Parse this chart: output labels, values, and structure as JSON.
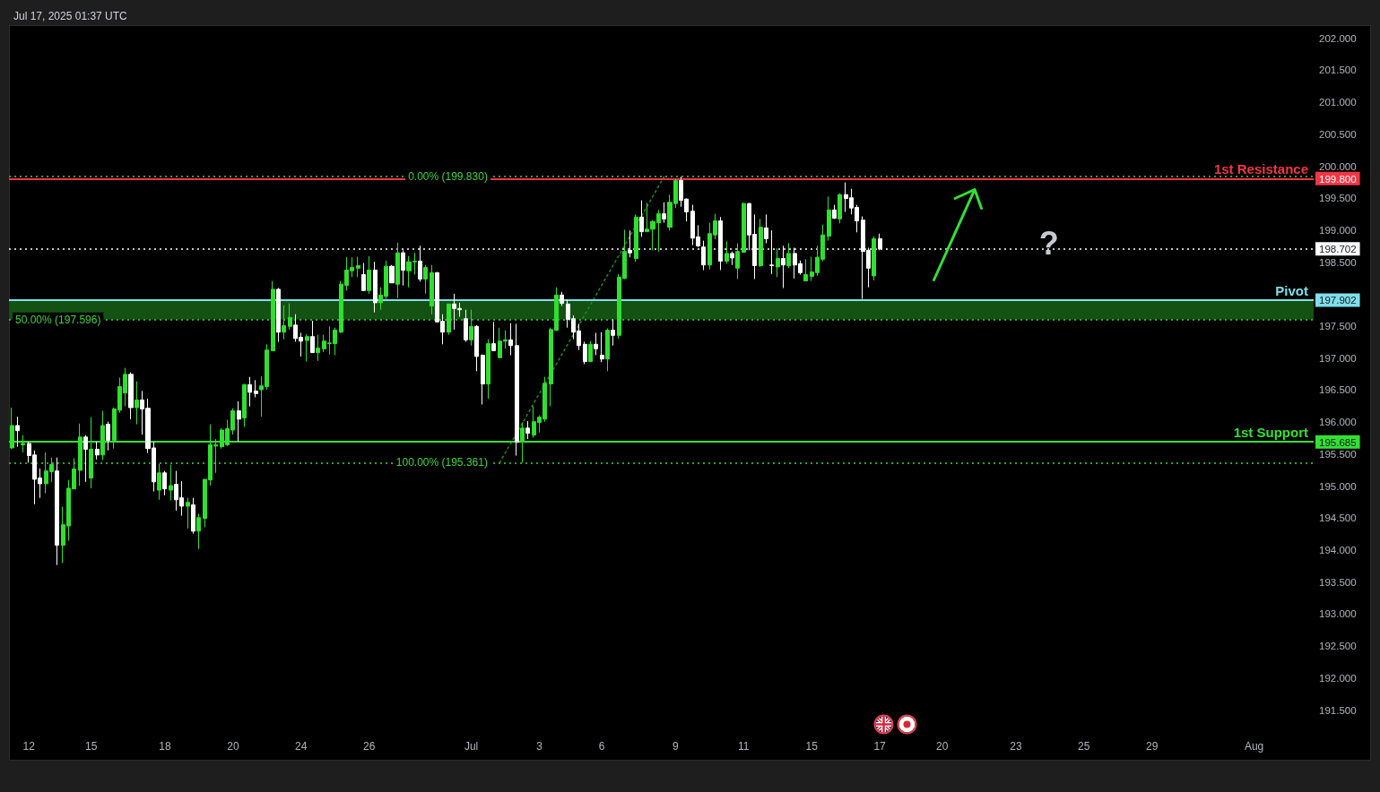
{
  "chart_data": {
    "type": "candlestick",
    "title": "Jul 17, 2025 01:37 UTC",
    "categories": [
      null,
      null,
      null,
      "12",
      null,
      null,
      null,
      null,
      null,
      null,
      null,
      null,
      null,
      null,
      "15",
      null,
      null,
      null,
      null,
      null,
      null,
      null,
      null,
      null,
      null,
      null,
      null,
      "18",
      null,
      null,
      null,
      null,
      null,
      null,
      null,
      null,
      null,
      null,
      null,
      "20",
      null,
      null,
      null,
      null,
      null,
      null,
      null,
      null,
      null,
      null,
      null,
      "24",
      null,
      null,
      null,
      null,
      null,
      null,
      null,
      null,
      null,
      null,
      null,
      "26",
      null,
      null,
      null,
      null,
      null,
      null,
      null,
      null,
      null,
      null,
      null,
      null,
      null,
      null,
      null,
      null,
      null,
      "Jul",
      null,
      null,
      null,
      null,
      null,
      null,
      null,
      null,
      null,
      null,
      null,
      "3",
      null,
      null,
      null,
      null,
      null,
      null,
      null,
      null,
      null,
      null,
      "6",
      null,
      null,
      null,
      null,
      null,
      null,
      null,
      null,
      null,
      null,
      null,
      null,
      "9",
      null,
      null,
      null,
      null,
      null,
      null,
      null,
      null,
      null,
      null,
      null,
      "11",
      null,
      null,
      null,
      null,
      null,
      null,
      null,
      null,
      null,
      null,
      null,
      "15",
      null,
      null,
      null,
      null,
      null,
      null,
      null,
      null,
      null,
      null,
      null,
      "17",
      null,
      null,
      null,
      null,
      null,
      null,
      null,
      null,
      null,
      null,
      "20",
      null,
      null,
      null,
      null,
      null,
      null,
      null,
      null,
      null,
      null,
      null,
      null,
      "23",
      null,
      null,
      null,
      null,
      null,
      null,
      null,
      null,
      null,
      null,
      null,
      "25",
      null,
      null,
      null,
      null,
      null,
      null,
      null,
      null,
      null,
      null,
      null,
      "29",
      null,
      null,
      null,
      null,
      null,
      null,
      null,
      null,
      null,
      null,
      null,
      null,
      null,
      null,
      null,
      null,
      null,
      "Aug",
      null,
      null,
      null,
      null,
      null,
      null,
      null,
      null,
      null,
      null
    ],
    "ohlc": [
      [
        195.59,
        196.22,
        195.57,
        195.94
      ],
      [
        195.94,
        196.08,
        195.61,
        195.86
      ],
      [
        195.64,
        195.79,
        195.52,
        195.66
      ],
      [
        195.66,
        195.69,
        195.36,
        195.47
      ],
      [
        195.48,
        195.55,
        194.71,
        195.1
      ],
      [
        195.12,
        195.27,
        194.81,
        195.03
      ],
      [
        195.03,
        195.52,
        194.88,
        195.23
      ],
      [
        195.22,
        195.44,
        195.06,
        195.33
      ],
      [
        195.23,
        195.44,
        193.76,
        194.07
      ],
      [
        194.07,
        194.67,
        193.79,
        194.39
      ],
      [
        194.37,
        195.09,
        194.14,
        194.96
      ],
      [
        194.95,
        195.43,
        194.95,
        195.26
      ],
      [
        195.24,
        195.97,
        195.0,
        195.76
      ],
      [
        195.76,
        195.79,
        195.06,
        195.57
      ],
      [
        195.12,
        196.07,
        194.96,
        195.57
      ],
      [
        195.57,
        195.69,
        195.41,
        195.48
      ],
      [
        195.48,
        196.17,
        195.4,
        195.94
      ],
      [
        195.96,
        196.0,
        195.55,
        195.71
      ],
      [
        195.71,
        196.22,
        195.58,
        196.2
      ],
      [
        196.18,
        196.69,
        196.14,
        196.55
      ],
      [
        196.45,
        196.84,
        196.24,
        196.74
      ],
      [
        196.74,
        196.77,
        196.04,
        196.22
      ],
      [
        196.22,
        196.63,
        195.96,
        196.34
      ],
      [
        196.34,
        196.48,
        195.8,
        196.2
      ],
      [
        196.21,
        196.36,
        195.51,
        195.58
      ],
      [
        195.59,
        195.69,
        194.91,
        195.06
      ],
      [
        194.93,
        195.34,
        194.78,
        195.2
      ],
      [
        195.2,
        195.23,
        194.85,
        194.95
      ],
      [
        194.93,
        195.33,
        194.77,
        195.0
      ],
      [
        195.02,
        195.23,
        194.61,
        194.78
      ],
      [
        194.81,
        195.07,
        194.53,
        194.68
      ],
      [
        194.68,
        194.81,
        194.33,
        194.74
      ],
      [
        194.7,
        194.81,
        194.25,
        194.29
      ],
      [
        194.29,
        194.56,
        194.01,
        194.5
      ],
      [
        194.49,
        195.1,
        194.35,
        195.1
      ],
      [
        195.09,
        195.96,
        195.0,
        195.64
      ],
      [
        195.62,
        195.73,
        195.2,
        195.64
      ],
      [
        195.61,
        195.9,
        195.58,
        195.87
      ],
      [
        195.64,
        196.03,
        195.62,
        195.89
      ],
      [
        195.87,
        196.21,
        195.8,
        196.17
      ],
      [
        196.17,
        196.32,
        195.69,
        196.04
      ],
      [
        196.06,
        196.59,
        195.92,
        196.58
      ],
      [
        196.58,
        196.7,
        196.24,
        196.46
      ],
      [
        196.48,
        196.65,
        196.38,
        196.44
      ],
      [
        196.5,
        196.71,
        196.08,
        196.56
      ],
      [
        196.55,
        197.21,
        196.5,
        197.12
      ],
      [
        197.11,
        198.2,
        197.11,
        198.07
      ],
      [
        198.07,
        198.09,
        197.25,
        197.4
      ],
      [
        197.4,
        197.82,
        197.29,
        197.5
      ],
      [
        197.49,
        197.85,
        197.44,
        197.63
      ],
      [
        197.51,
        197.68,
        197.25,
        197.3
      ],
      [
        197.32,
        197.39,
        197.02,
        197.26
      ],
      [
        197.27,
        197.37,
        196.94,
        197.33
      ],
      [
        197.33,
        197.58,
        197.08,
        197.08
      ],
      [
        197.08,
        197.36,
        196.95,
        197.15
      ],
      [
        197.14,
        197.36,
        197.09,
        197.26
      ],
      [
        197.22,
        197.49,
        197.05,
        197.23
      ],
      [
        197.22,
        197.47,
        197.04,
        197.43
      ],
      [
        197.4,
        198.2,
        197.39,
        198.15
      ],
      [
        198.13,
        198.57,
        198.05,
        198.37
      ],
      [
        198.36,
        198.57,
        198.26,
        198.41
      ],
      [
        198.4,
        198.58,
        198.26,
        198.44
      ],
      [
        198.3,
        198.48,
        198.05,
        198.05
      ],
      [
        198.05,
        198.59,
        198.0,
        198.37
      ],
      [
        198.37,
        198.5,
        197.71,
        197.86
      ],
      [
        197.86,
        198.1,
        197.75,
        197.98
      ],
      [
        197.96,
        198.52,
        197.92,
        198.43
      ],
      [
        198.43,
        198.45,
        198.17,
        198.17
      ],
      [
        198.15,
        198.8,
        197.93,
        198.64
      ],
      [
        198.64,
        198.68,
        198.13,
        198.37
      ],
      [
        198.36,
        198.59,
        198.1,
        198.5
      ],
      [
        198.5,
        198.64,
        198.3,
        198.51
      ],
      [
        198.51,
        198.75,
        198.19,
        198.23
      ],
      [
        198.23,
        198.45,
        198.0,
        198.41
      ],
      [
        197.81,
        198.45,
        197.68,
        198.33
      ],
      [
        198.33,
        198.34,
        197.56,
        197.56
      ],
      [
        197.57,
        197.68,
        197.21,
        197.4
      ],
      [
        197.4,
        197.84,
        197.36,
        197.84
      ],
      [
        197.84,
        198.0,
        197.44,
        197.77
      ],
      [
        197.77,
        197.86,
        197.64,
        197.75
      ],
      [
        197.61,
        197.75,
        197.25,
        197.28
      ],
      [
        197.28,
        197.75,
        197.19,
        197.49
      ],
      [
        197.49,
        197.51,
        196.79,
        197.02
      ],
      [
        197.04,
        197.05,
        196.27,
        196.59
      ],
      [
        196.59,
        197.29,
        196.36,
        197.22
      ],
      [
        197.22,
        197.56,
        197.11,
        197.11
      ],
      [
        197.0,
        197.47,
        197.0,
        197.26
      ],
      [
        197.26,
        197.43,
        197.14,
        197.28
      ],
      [
        197.28,
        197.54,
        197.04,
        197.19
      ],
      [
        197.19,
        197.53,
        195.47,
        195.68
      ],
      [
        195.68,
        195.99,
        195.36,
        195.9
      ],
      [
        195.9,
        196.01,
        195.73,
        195.82
      ],
      [
        195.79,
        196.24,
        195.75,
        196.0
      ],
      [
        195.99,
        196.1,
        195.83,
        196.07
      ],
      [
        196.04,
        196.7,
        196.0,
        196.6
      ],
      [
        196.59,
        197.47,
        196.24,
        197.44
      ],
      [
        197.43,
        198.1,
        197.42,
        197.98
      ],
      [
        197.98,
        198.03,
        197.81,
        197.85
      ],
      [
        197.84,
        197.91,
        197.47,
        197.6
      ],
      [
        197.61,
        197.66,
        197.29,
        197.4
      ],
      [
        197.42,
        197.53,
        197.12,
        197.19
      ],
      [
        197.21,
        197.25,
        196.9,
        196.94
      ],
      [
        196.94,
        197.26,
        196.94,
        197.21
      ],
      [
        197.21,
        197.39,
        197.04,
        197.14
      ],
      [
        197.04,
        197.4,
        196.93,
        196.98
      ],
      [
        196.98,
        197.46,
        196.79,
        197.43
      ],
      [
        197.43,
        197.6,
        197.19,
        197.35
      ],
      [
        197.35,
        198.31,
        197.3,
        198.26
      ],
      [
        198.24,
        199.0,
        198.23,
        198.66
      ],
      [
        198.68,
        198.99,
        198.57,
        198.64
      ],
      [
        198.55,
        199.24,
        198.5,
        199.2
      ],
      [
        199.2,
        199.46,
        198.89,
        198.97
      ],
      [
        198.97,
        199.42,
        198.97,
        199.01
      ],
      [
        199.01,
        199.15,
        198.68,
        199.13
      ],
      [
        199.11,
        199.31,
        198.66,
        199.25
      ],
      [
        199.25,
        199.43,
        199.11,
        199.17
      ],
      [
        199.04,
        199.55,
        198.99,
        199.43
      ],
      [
        199.41,
        199.8,
        199.34,
        199.77
      ],
      [
        199.77,
        199.83,
        199.36,
        199.46
      ],
      [
        199.48,
        199.49,
        199.13,
        199.28
      ],
      [
        199.29,
        199.39,
        198.76,
        198.87
      ],
      [
        198.89,
        199.07,
        198.73,
        198.75
      ],
      [
        198.73,
        198.83,
        198.37,
        198.45
      ],
      [
        198.45,
        199.11,
        198.38,
        198.94
      ],
      [
        198.92,
        199.25,
        198.85,
        199.14
      ],
      [
        199.14,
        199.2,
        198.37,
        198.51
      ],
      [
        198.51,
        198.82,
        198.47,
        198.63
      ],
      [
        198.63,
        198.66,
        198.45,
        198.56
      ],
      [
        198.4,
        198.79,
        198.23,
        198.66
      ],
      [
        198.65,
        199.43,
        198.64,
        199.41
      ],
      [
        199.41,
        199.42,
        198.68,
        198.92
      ],
      [
        198.93,
        199.24,
        198.23,
        198.44
      ],
      [
        198.44,
        199.17,
        198.42,
        199.04
      ],
      [
        199.03,
        199.24,
        198.79,
        198.86
      ],
      [
        198.45,
        198.99,
        198.31,
        198.44
      ],
      [
        198.42,
        198.71,
        198.26,
        198.55
      ],
      [
        198.55,
        198.75,
        198.09,
        198.45
      ],
      [
        198.44,
        198.79,
        198.4,
        198.63
      ],
      [
        198.63,
        198.72,
        198.24,
        198.45
      ],
      [
        198.47,
        198.52,
        198.3,
        198.33
      ],
      [
        198.2,
        198.54,
        198.2,
        198.3
      ],
      [
        198.27,
        198.58,
        198.2,
        198.34
      ],
      [
        198.33,
        198.75,
        198.28,
        198.57
      ],
      [
        198.54,
        199.08,
        198.51,
        198.92
      ],
      [
        198.9,
        199.52,
        198.83,
        199.31
      ],
      [
        199.31,
        199.39,
        199.17,
        199.18
      ],
      [
        199.17,
        199.57,
        199.1,
        199.55
      ],
      [
        199.55,
        199.74,
        199.28,
        199.49
      ],
      [
        199.5,
        199.64,
        199.24,
        199.34
      ],
      [
        199.35,
        199.39,
        198.96,
        199.14
      ],
      [
        199.15,
        199.21,
        197.92,
        198.66
      ],
      [
        198.68,
        198.72,
        198.1,
        198.4
      ],
      [
        198.28,
        198.9,
        198.21,
        198.86
      ],
      [
        198.86,
        198.94,
        198.68,
        198.7
      ],
      null,
      null,
      null,
      null,
      null,
      null,
      null,
      null,
      null,
      null,
      null,
      null,
      null,
      null,
      null,
      null,
      null,
      null,
      null,
      null,
      null,
      null,
      null,
      null,
      null,
      null,
      null,
      null,
      null,
      null,
      null,
      null,
      null,
      null,
      null,
      null,
      null,
      null,
      null,
      null,
      null,
      null,
      null,
      null,
      null,
      null,
      null,
      null,
      null,
      null,
      null,
      null,
      null,
      null,
      null,
      null,
      null,
      null,
      null,
      null,
      null,
      null,
      null,
      null,
      null,
      null,
      null,
      null,
      null,
      null,
      null,
      null,
      null,
      null,
      null,
      null
    ],
    "colors": [
      "#2fe02f",
      "#ffffff",
      "#2fe02f",
      "#ffffff",
      "#ffffff",
      "#ffffff",
      "#2fe02f",
      "#2fe02f",
      "#ffffff",
      "#2fe02f",
      "#2fe02f",
      "#2fe02f",
      "#2fe02f",
      "#ffffff",
      "#2fe02f",
      "#ffffff",
      "#2fe02f",
      "#ffffff",
      "#2fe02f",
      "#2fe02f",
      "#2fe02f",
      "#ffffff",
      "#2fe02f",
      "#ffffff",
      "#ffffff",
      "#ffffff",
      "#2fe02f",
      "#ffffff",
      "#2fe02f",
      "#ffffff",
      "#ffffff",
      "#2fe02f",
      "#ffffff",
      "#2fe02f",
      "#2fe02f",
      "#2fe02f",
      "#2fe02f",
      "#2fe02f",
      "#2fe02f",
      "#2fe02f",
      "#ffffff",
      "#2fe02f",
      "#ffffff",
      "#ffffff",
      "#2fe02f",
      "#2fe02f",
      "#2fe02f",
      "#ffffff",
      "#2fe02f",
      "#2fe02f",
      "#ffffff",
      "#ffffff",
      "#2fe02f",
      "#ffffff",
      "#2fe02f",
      "#2fe02f",
      "#2fe02f",
      "#2fe02f",
      "#2fe02f",
      "#2fe02f",
      "#2fe02f",
      "#2fe02f",
      "#ffffff",
      "#2fe02f",
      "#ffffff",
      "#2fe02f",
      "#2fe02f",
      "#ffffff",
      "#2fe02f",
      "#ffffff",
      "#2fe02f",
      "#2fe02f",
      "#ffffff",
      "#2fe02f",
      "#2fe02f",
      "#ffffff",
      "#ffffff",
      "#2fe02f",
      "#ffffff",
      "#ffffff",
      "#ffffff",
      "#2fe02f",
      "#ffffff",
      "#ffffff",
      "#2fe02f",
      "#ffffff",
      "#2fe02f",
      "#2fe02f",
      "#ffffff",
      "#ffffff",
      "#2fe02f",
      "#ffffff",
      "#2fe02f",
      "#2fe02f",
      "#2fe02f",
      "#2fe02f",
      "#2fe02f",
      "#ffffff",
      "#ffffff",
      "#ffffff",
      "#ffffff",
      "#ffffff",
      "#2fe02f",
      "#ffffff",
      "#ffffff",
      "#2fe02f",
      "#ffffff",
      "#2fe02f",
      "#2fe02f",
      "#ffffff",
      "#2fe02f",
      "#ffffff",
      "#2fe02f",
      "#2fe02f",
      "#2fe02f",
      "#ffffff",
      "#2fe02f",
      "#2fe02f",
      "#ffffff",
      "#ffffff",
      "#ffffff",
      "#ffffff",
      "#ffffff",
      "#2fe02f",
      "#2fe02f",
      "#ffffff",
      "#2fe02f",
      "#ffffff",
      "#2fe02f",
      "#2fe02f",
      "#ffffff",
      "#ffffff",
      "#2fe02f",
      "#ffffff",
      "#ffffff",
      "#2fe02f",
      "#ffffff",
      "#2fe02f",
      "#ffffff",
      "#ffffff",
      "#2fe02f",
      "#2fe02f",
      "#2fe02f",
      "#2fe02f",
      "#2fe02f",
      "#ffffff",
      "#2fe02f",
      "#ffffff",
      "#ffffff",
      "#ffffff",
      "#ffffff",
      "#ffffff",
      "#2fe02f",
      "#ffffff",
      null,
      null,
      null,
      null,
      null,
      null,
      null,
      null,
      null,
      null,
      null,
      null,
      null,
      null,
      null,
      null,
      null,
      null,
      null,
      null,
      null,
      null,
      null,
      null,
      null,
      null,
      null,
      null,
      null,
      null,
      null,
      null,
      null,
      null,
      null,
      null,
      null,
      null,
      null,
      null,
      null,
      null,
      null,
      null,
      null,
      null,
      null,
      null,
      null,
      null,
      null,
      null,
      null,
      null,
      null,
      null,
      null,
      null,
      null,
      null,
      null,
      null,
      null,
      null,
      null,
      null,
      null,
      null,
      null,
      null,
      null,
      null,
      null,
      null,
      null,
      null
    ],
    "series": [
      {
        "type": "line",
        "color": "#1f8f1f",
        "line_style": "dotted",
        "marker": "none",
        "values": [
          null,
          null,
          null,
          null,
          null,
          null,
          null,
          null,
          null,
          null,
          null,
          null,
          null,
          null,
          null,
          null,
          null,
          null,
          null,
          null,
          null,
          null,
          null,
          null,
          null,
          null,
          null,
          null,
          null,
          null,
          null,
          null,
          null,
          null,
          null,
          null,
          null,
          null,
          null,
          null,
          null,
          null,
          null,
          null,
          null,
          null,
          null,
          null,
          null,
          null,
          null,
          null,
          null,
          null,
          null,
          null,
          null,
          null,
          null,
          null,
          null,
          null,
          null,
          null,
          null,
          null,
          null,
          null,
          null,
          null,
          null,
          null,
          null,
          null,
          null,
          null,
          null,
          null,
          null,
          null,
          null,
          null,
          null,
          null,
          null,
          null,
          195.361,
          null,
          null,
          null,
          null,
          null,
          null,
          null,
          null,
          null,
          null,
          null,
          null,
          null,
          null,
          null,
          null,
          null,
          null,
          null,
          null,
          null,
          null,
          null,
          null,
          null,
          null,
          null,
          null,
          199.83,
          null,
          null,
          null,
          null,
          null,
          null,
          null,
          null,
          null,
          null,
          null,
          null,
          null,
          null,
          null,
          null,
          null,
          null,
          null,
          null,
          null,
          null,
          null,
          null,
          null,
          null,
          null,
          null,
          null,
          null,
          null,
          null,
          null,
          null,
          null,
          null,
          null,
          null,
          null,
          null,
          null,
          null,
          null,
          null,
          null,
          null,
          null,
          null,
          null,
          null,
          null,
          null,
          null,
          null,
          null,
          null,
          null,
          null,
          null,
          null,
          null,
          null,
          null,
          null,
          null,
          null,
          null,
          null,
          null,
          null,
          null,
          null,
          null,
          null,
          null,
          null,
          null,
          null,
          null,
          null,
          null,
          null,
          null,
          null,
          null,
          null,
          null,
          null,
          null,
          null,
          null,
          null,
          null,
          null,
          null,
          null,
          null,
          null,
          null,
          null,
          null,
          null,
          null,
          null,
          null,
          null,
          null,
          null,
          null,
          null,
          null,
          null,
          null,
          null
        ]
      }
    ],
    "ref_lines": [
      {
        "axis": "y",
        "value": 199.83,
        "label": "0.00% (199.830)",
        "color": "#3fd43f",
        "line_style": "dotted"
      },
      {
        "axis": "y",
        "value": 197.596,
        "label": "50.00% (197.596)",
        "color": "#3fd43f",
        "line_style": "dotted"
      },
      {
        "axis": "y",
        "value": 195.361,
        "label": "100.00% (195.361)",
        "color": "#3fd43f",
        "line_style": "dotted"
      },
      {
        "axis": "y",
        "value": 199.8,
        "label": "1st Resistance",
        "color": "#f23645"
      },
      {
        "axis": "y",
        "value": 197.902,
        "label": "Pivot",
        "color": "#80deea"
      },
      {
        "axis": "y",
        "value": 195.685,
        "label": "1st Support",
        "color": "#33e033"
      },
      {
        "axis": "y",
        "value": 198.702,
        "color": "#ffffff",
        "line_style": "dotted"
      }
    ],
    "bands": [
      {
        "axis": "y",
        "from": 197.596,
        "to": 197.902,
        "color": "#135213"
      }
    ],
    "ylim": [
      191.5,
      202.2
    ],
    "yticks": [
      {
        "value": 191.5,
        "label": "191.500"
      },
      {
        "value": 192,
        "label": "192.000"
      },
      {
        "value": 192.5,
        "label": "192.500"
      },
      {
        "value": 193,
        "label": "193.000"
      },
      {
        "value": 193.5,
        "label": "193.500"
      },
      {
        "value": 194,
        "label": "194.000"
      },
      {
        "value": 194.5,
        "label": "194.500"
      },
      {
        "value": 195,
        "label": "195.000"
      },
      {
        "value": 195.5,
        "label": "195.500"
      },
      {
        "value": 196,
        "label": "196.000"
      },
      {
        "value": 196.5,
        "label": "196.500"
      },
      {
        "value": 197,
        "label": "197.000"
      },
      {
        "value": 197.5,
        "label": "197.500"
      },
      {
        "value": 198.5,
        "label": "198.500"
      },
      {
        "value": 199,
        "label": "199.000"
      },
      {
        "value": 199.5,
        "label": "199.500"
      },
      {
        "value": 200,
        "label": "200.000"
      },
      {
        "value": 200.5,
        "label": "200.500"
      },
      {
        "value": 201,
        "label": "201.000"
      },
      {
        "value": 201.5,
        "label": "201.500"
      },
      {
        "value": 202,
        "label": "202.000"
      },
      {
        "value": 199.8,
        "label": "199.800"
      },
      {
        "value": 198.702,
        "label": "198.702"
      },
      {
        "value": 197.902,
        "label": "197.902"
      },
      {
        "value": 195.685,
        "label": "195.685"
      }
    ],
    "grid": false,
    "annotations": [
      "?"
    ]
  }
}
